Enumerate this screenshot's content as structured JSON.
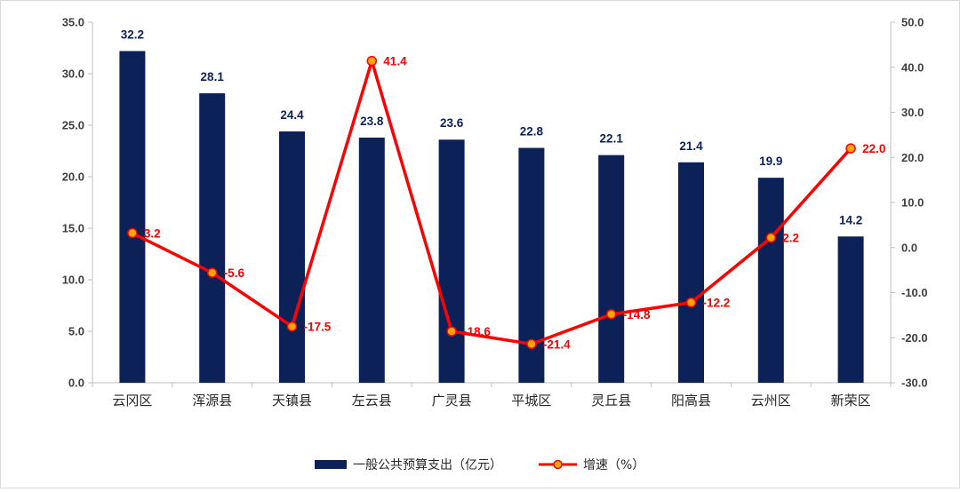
{
  "chart_data": {
    "type": "bar",
    "categories": [
      "云冈区",
      "浑源县",
      "天镇县",
      "左云县",
      "广灵县",
      "平城区",
      "灵丘县",
      "阳高县",
      "云州区",
      "新荣区"
    ],
    "series": [
      {
        "name": "一般公共预算支出（亿元）",
        "type": "bar",
        "axis": "left",
        "color": "#0d2159",
        "values": [
          32.2,
          28.1,
          24.4,
          23.8,
          23.6,
          22.8,
          22.1,
          21.4,
          19.9,
          14.2
        ],
        "labels": [
          "32.2",
          "28.1",
          "24.4",
          "23.8",
          "23.6",
          "22.8",
          "22.1",
          "21.4",
          "19.9",
          "14.2"
        ]
      },
      {
        "name": "增速（%）",
        "type": "line",
        "axis": "right",
        "color": "#ff0000",
        "marker_color": "#ffa500",
        "values": [
          3.2,
          -5.6,
          -17.5,
          41.4,
          -18.6,
          -21.4,
          -14.8,
          -12.2,
          2.2,
          22.0
        ],
        "labels": [
          "3.2",
          "-5.6",
          "-17.5",
          "41.4",
          "-18.6",
          "-21.4",
          "-14.8",
          "-12.2",
          "2.2",
          "22.0"
        ]
      }
    ],
    "left_axis": {
      "ylim": [
        0,
        35
      ],
      "ticks": [
        "0.0",
        "5.0",
        "10.0",
        "15.0",
        "20.0",
        "25.0",
        "30.0",
        "35.0"
      ]
    },
    "right_axis": {
      "ylim": [
        -30,
        50
      ],
      "ticks": [
        "-30.0",
        "-20.0",
        "-10.0",
        "0.0",
        "10.0",
        "20.0",
        "30.0",
        "40.0",
        "50.0"
      ]
    },
    "title": "",
    "xlabel": "",
    "ylabel": "",
    "grid": false,
    "legend": "bottom"
  }
}
